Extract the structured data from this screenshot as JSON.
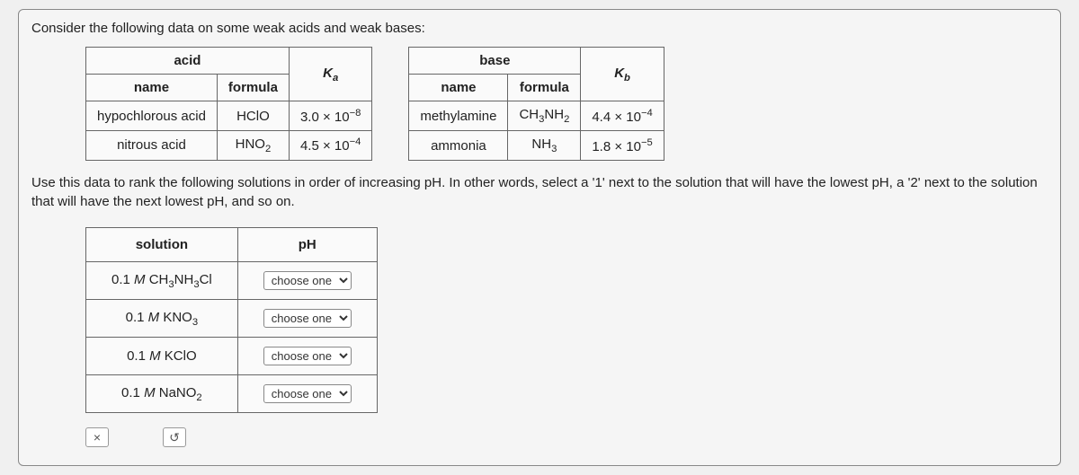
{
  "intro": "Consider the following data on some weak acids and weak bases:",
  "acid_table": {
    "super_header": "acid",
    "headers": {
      "name": "name",
      "formula": "formula",
      "k": "K",
      "k_sub": "a"
    },
    "rows": [
      {
        "name": "hypochlorous acid",
        "formula": "HClO",
        "k_base": "3.0 × 10",
        "k_exp": "−8"
      },
      {
        "name": "nitrous acid",
        "formula_pre": "HNO",
        "formula_sub": "2",
        "k_base": "4.5 × 10",
        "k_exp": "−4"
      }
    ]
  },
  "base_table": {
    "super_header": "base",
    "headers": {
      "name": "name",
      "formula": "formula",
      "k": "K",
      "k_sub": "b"
    },
    "rows": [
      {
        "name": "methylamine",
        "formula_pre": "CH",
        "formula_sub1": "3",
        "formula_mid": "NH",
        "formula_sub2": "2",
        "k_base": "4.4 × 10",
        "k_exp": "−4"
      },
      {
        "name": "ammonia",
        "formula_pre": "NH",
        "formula_sub1": "3",
        "k_base": "1.8 × 10",
        "k_exp": "−5"
      }
    ]
  },
  "instruction": "Use this data to rank the following solutions in order of increasing pH. In other words, select a '1' next to the solution that will have the lowest pH, a '2' next to the solution that will have the next lowest pH, and so on.",
  "answer_table": {
    "headers": {
      "solution": "solution",
      "ph": "pH"
    },
    "rows": [
      {
        "conc": "0.1 ",
        "unit": "M",
        "sp": " CH",
        "s1": "3",
        "mid": "NH",
        "s2": "3",
        "tail": "Cl"
      },
      {
        "conc": "0.1 ",
        "unit": "M",
        "sp": " KNO",
        "s1": "3"
      },
      {
        "conc": "0.1 ",
        "unit": "M",
        "sp": " KClO"
      },
      {
        "conc": "0.1 ",
        "unit": "M",
        "sp": " NaNO",
        "s1": "2"
      }
    ],
    "select_placeholder": "choose one"
  },
  "buttons": {
    "close": "×",
    "reset": "↺"
  }
}
